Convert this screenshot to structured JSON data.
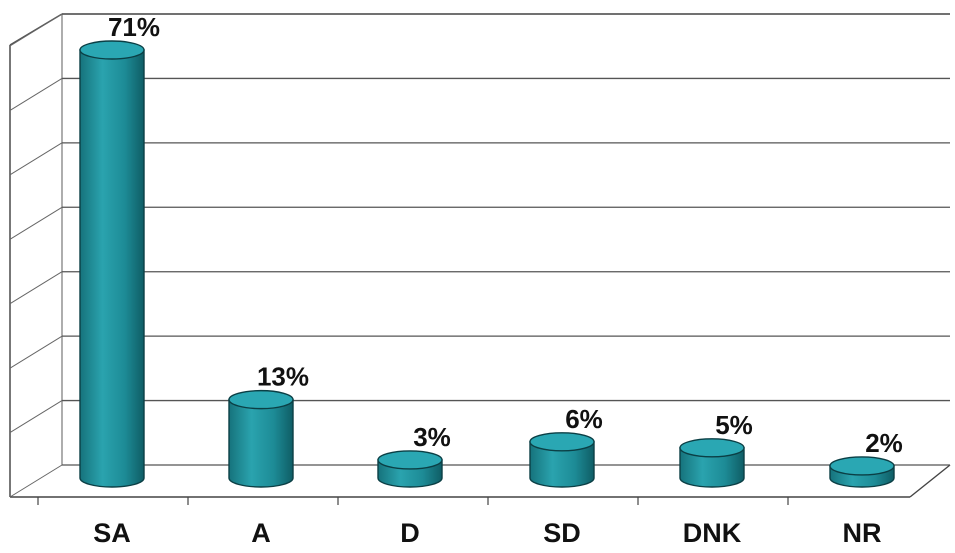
{
  "chart_data": {
    "type": "bar",
    "categories": [
      "SA",
      "A",
      "D",
      "SD",
      "DNK",
      "NR"
    ],
    "values": [
      71,
      13,
      3,
      6,
      5,
      2
    ],
    "data_labels": [
      "71%",
      "13%",
      "3%",
      "6%",
      "5%",
      "2%"
    ],
    "title": "",
    "xlabel": "",
    "ylabel": "",
    "ylim": [
      0,
      70
    ],
    "grid": true,
    "legend": "none",
    "bar_color": "#1f8c97",
    "bar_top_color": "#2aa7b3"
  }
}
